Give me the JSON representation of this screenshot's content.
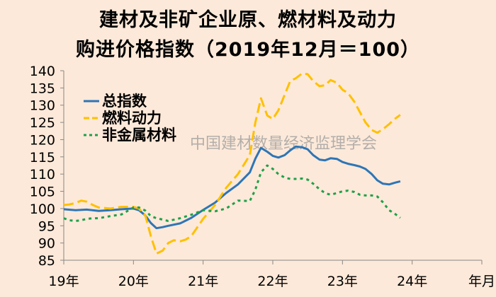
{
  "chart_data": {
    "type": "line",
    "title_line_1": "建材及非矿企业原、燃材料及动力",
    "title_line_2": "购进价格指数（2019年12月＝100）",
    "x_tick_labels": [
      "19年",
      "20年",
      "21年",
      "22年",
      "23年",
      "24年",
      "年月"
    ],
    "y_ticks": [
      85,
      90,
      95,
      100,
      105,
      110,
      115,
      120,
      125,
      130,
      135,
      140
    ],
    "ylim": [
      85,
      140
    ],
    "xlim": [
      2019.0,
      2025.0
    ],
    "grid": false,
    "legend_position": "upper-left",
    "watermark": "中国建材数量经济监理学会",
    "series": [
      {
        "name": "总指数",
        "color": "#2e75b6",
        "dash": "",
        "x": [
          2019.0,
          2019.17,
          2019.33,
          2019.5,
          2019.67,
          2019.83,
          2020.0,
          2020.08,
          2020.17,
          2020.25,
          2020.33,
          2020.42,
          2020.5,
          2020.67,
          2020.83,
          2021.0,
          2021.17,
          2021.33,
          2021.5,
          2021.67,
          2021.75,
          2021.83,
          2021.92,
          2022.0,
          2022.08,
          2022.17,
          2022.25,
          2022.33,
          2022.42,
          2022.5,
          2022.58,
          2022.67,
          2022.75,
          2022.83,
          2022.92,
          2023.0,
          2023.08,
          2023.17,
          2023.25,
          2023.33,
          2023.42,
          2023.5,
          2023.58,
          2023.67,
          2023.75,
          2023.83
        ],
        "y": [
          99.8,
          99.5,
          99.7,
          99.3,
          99.5,
          99.8,
          100.0,
          99.5,
          98.0,
          95.8,
          94.3,
          94.6,
          95.0,
          95.7,
          97.3,
          99.6,
          101.7,
          104.5,
          107.0,
          110.5,
          114.5,
          117.6,
          116.5,
          115.3,
          114.8,
          115.5,
          116.9,
          118.0,
          117.8,
          117.2,
          115.5,
          114.2,
          114.0,
          114.6,
          114.4,
          113.5,
          113.0,
          112.6,
          112.2,
          111.5,
          110.0,
          108.2,
          107.2,
          107.0,
          107.5,
          107.9
        ]
      },
      {
        "name": "燃料动力",
        "color": "#ffc000",
        "dash": "14 6",
        "x": [
          2019.0,
          2019.08,
          2019.17,
          2019.25,
          2019.33,
          2019.42,
          2019.5,
          2019.67,
          2019.83,
          2020.0,
          2020.08,
          2020.17,
          2020.25,
          2020.33,
          2020.42,
          2020.5,
          2020.58,
          2020.67,
          2020.75,
          2020.83,
          2021.0,
          2021.17,
          2021.33,
          2021.5,
          2021.67,
          2021.75,
          2021.83,
          2021.92,
          2022.0,
          2022.08,
          2022.17,
          2022.25,
          2022.33,
          2022.42,
          2022.5,
          2022.58,
          2022.67,
          2022.75,
          2022.83,
          2022.92,
          2023.0,
          2023.08,
          2023.17,
          2023.25,
          2023.33,
          2023.42,
          2023.5,
          2023.58,
          2023.67,
          2023.75,
          2023.83
        ],
        "y": [
          101.0,
          101.2,
          101.6,
          102.3,
          102.0,
          101.0,
          100.3,
          100.0,
          100.5,
          100.5,
          100.0,
          98.0,
          92.0,
          86.9,
          87.8,
          90.0,
          90.8,
          90.5,
          91.0,
          92.0,
          97.0,
          101.0,
          106.0,
          110.0,
          115.5,
          125.0,
          132.0,
          127.0,
          126.0,
          128.5,
          133.0,
          137.0,
          137.8,
          139.2,
          139.0,
          137.0,
          135.5,
          135.8,
          137.3,
          136.5,
          134.5,
          133.5,
          131.0,
          128.0,
          125.0,
          122.8,
          122.0,
          123.0,
          124.5,
          126.0,
          127.2
        ]
      },
      {
        "name": "非金属材料",
        "color": "#1fa04a",
        "dash": "4 5",
        "x": [
          2019.0,
          2019.08,
          2019.17,
          2019.25,
          2019.33,
          2019.42,
          2019.5,
          2019.67,
          2019.83,
          2020.0,
          2020.08,
          2020.17,
          2020.25,
          2020.33,
          2020.42,
          2020.5,
          2020.67,
          2020.83,
          2021.0,
          2021.17,
          2021.33,
          2021.5,
          2021.67,
          2021.75,
          2021.83,
          2021.92,
          2022.0,
          2022.08,
          2022.17,
          2022.25,
          2022.33,
          2022.42,
          2022.5,
          2022.58,
          2022.67,
          2022.75,
          2022.83,
          2022.92,
          2023.0,
          2023.08,
          2023.17,
          2023.25,
          2023.33,
          2023.42,
          2023.5,
          2023.58,
          2023.67,
          2023.75,
          2023.83
        ],
        "y": [
          97.2,
          96.6,
          96.4,
          96.6,
          97.0,
          97.2,
          97.2,
          97.8,
          98.3,
          100.3,
          100.3,
          99.4,
          97.8,
          97.2,
          96.8,
          96.4,
          97.2,
          98.2,
          99.5,
          99.2,
          100.0,
          102.3,
          102.2,
          105.5,
          110.5,
          112.5,
          111.5,
          110.0,
          109.0,
          108.6,
          108.6,
          108.7,
          108.4,
          107.2,
          105.6,
          104.5,
          104.0,
          104.5,
          105.0,
          105.2,
          104.8,
          104.0,
          103.8,
          103.8,
          103.5,
          101.8,
          99.5,
          98.5,
          97.3
        ]
      }
    ]
  }
}
